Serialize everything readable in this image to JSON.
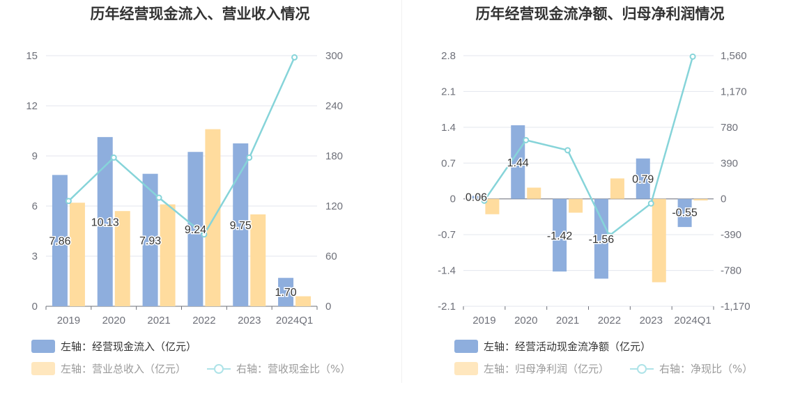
{
  "chart_data": [
    {
      "type": "bar",
      "title": "历年经营现金流入、营业收入情况",
      "categories": [
        "2019",
        "2020",
        "2021",
        "2022",
        "2023",
        "2024Q1"
      ],
      "left_axis": {
        "ticks": [
          "0",
          "3",
          "6",
          "9",
          "12",
          "15"
        ],
        "ylim": [
          0,
          15
        ]
      },
      "right_axis": {
        "ticks": [
          "0",
          "60",
          "120",
          "180",
          "240",
          "300"
        ],
        "ylim": [
          0,
          300
        ]
      },
      "grid": true,
      "legend_position": "bottom",
      "series": [
        {
          "name": "左轴：经营现金流入（亿元）",
          "type": "bar",
          "axis": "left",
          "color": "#8eaedd",
          "values": [
            7.86,
            10.13,
            7.93,
            9.24,
            9.75,
            1.7
          ],
          "labels": [
            "7.86",
            "10.13",
            "7.93",
            "9.24",
            "9.75",
            "1.70"
          ]
        },
        {
          "name": "左轴：营业总收入（亿元）",
          "type": "bar",
          "axis": "left",
          "color": "#ffdc9e",
          "values": [
            6.2,
            5.7,
            6.1,
            10.6,
            5.5,
            0.6
          ]
        },
        {
          "name": "右轴：营收现金比（%）",
          "type": "line",
          "axis": "right",
          "color": "#86d4d9",
          "values": [
            126,
            178,
            130,
            86,
            178,
            298
          ]
        }
      ]
    },
    {
      "type": "bar",
      "title": "历年经营现金流净额、归母净利润情况",
      "categories": [
        "2019",
        "2020",
        "2021",
        "2022",
        "2023",
        "2024Q1"
      ],
      "left_axis": {
        "ticks": [
          "-2.1",
          "-1.4",
          "-0.7",
          "0",
          "0.7",
          "1.4",
          "2.1",
          "2.8"
        ],
        "ylim": [
          -2.1,
          2.8
        ]
      },
      "right_axis": {
        "ticks": [
          "-1,170",
          "-780",
          "-390",
          "0",
          "390",
          "780",
          "1,170",
          "1,560"
        ],
        "ylim": [
          -1170,
          1560
        ]
      },
      "grid": true,
      "legend_position": "bottom",
      "series": [
        {
          "name": "左轴：经营活动现金流净额（亿元）",
          "type": "bar",
          "axis": "left",
          "color": "#8eaedd",
          "values": [
            0.06,
            1.44,
            -1.42,
            -1.56,
            0.79,
            -0.55
          ],
          "labels": [
            "0.06",
            "1.44",
            "-1.42",
            "-1.56",
            "0.79",
            "-0.55"
          ]
        },
        {
          "name": "左轴：归母净利润（亿元）",
          "type": "bar",
          "axis": "left",
          "color": "#ffdc9e",
          "values": [
            -0.3,
            0.22,
            -0.27,
            0.4,
            -1.63,
            -0.03
          ]
        },
        {
          "name": "右轴：净现比（%）",
          "type": "line",
          "axis": "right",
          "color": "#86d4d9",
          "values": [
            -20,
            640,
            530,
            -400,
            -50,
            1550
          ]
        }
      ]
    }
  ]
}
